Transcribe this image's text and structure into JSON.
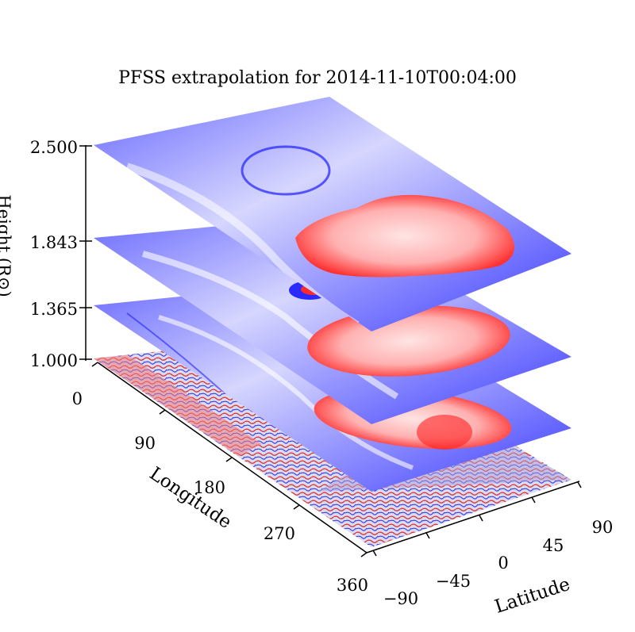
{
  "chart_data": {
    "type": "surface-3d",
    "title": "PFSS extrapolation for 2014-11-10T00:04:00",
    "z_axis": {
      "label": "Height (R⊙)",
      "ticks": [
        "1.000",
        "1.365",
        "1.843",
        "2.500"
      ],
      "values": [
        1.0,
        1.365,
        1.843,
        2.5
      ]
    },
    "x_axis": {
      "label": "Longitude",
      "ticks": [
        "0",
        "90",
        "180",
        "270",
        "360"
      ],
      "range": [
        0,
        360
      ]
    },
    "y_axis": {
      "label": "Latitude",
      "ticks": [
        "−90",
        "−45",
        "0",
        "45",
        "90"
      ],
      "range": [
        -90,
        90
      ]
    },
    "layers": [
      {
        "height": 1.0,
        "content": "photospheric magnetogram, mixed polarity"
      },
      {
        "height": 1.365,
        "content": "field-line map, mostly negative with positive region"
      },
      {
        "height": 1.843,
        "content": "field-line map, large positive region"
      },
      {
        "height": 2.5,
        "content": "field-line map, large positive region"
      }
    ],
    "colors": {
      "positive": "#ff2a2a",
      "negative": "#2020ff",
      "neutral": "#ffffff"
    }
  }
}
